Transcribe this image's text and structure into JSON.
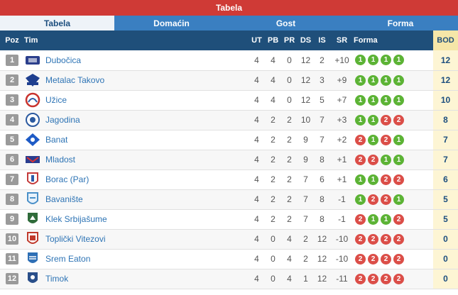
{
  "header": {
    "title": "Tabela"
  },
  "tabs": [
    {
      "label": "Tabela",
      "active": true
    },
    {
      "label": "Domaćin",
      "active": false
    },
    {
      "label": "Gost",
      "active": false
    },
    {
      "label": "Forma",
      "active": false
    }
  ],
  "columns": {
    "poz": "Poz",
    "tim": "Tim",
    "ut": "UT",
    "pb": "PB",
    "pr": "PR",
    "ds": "DS",
    "is": "IS",
    "sr": "SR",
    "forma": "Forma",
    "bod": "BOD"
  },
  "colors": {
    "title_bg": "#cf3a36",
    "tabs_bg": "#3a7fc1",
    "header_bg": "#1f4f7a",
    "win": "#5cb335",
    "loss": "#db4e48",
    "points_bg": "#fdf5d4"
  },
  "rows": [
    {
      "poz": "1",
      "team": "Dubočica",
      "logo_icon": "dubocica-logo",
      "logo_color": "#2b3f8c",
      "ut": "4",
      "pb": "4",
      "pr": "0",
      "ds": "12",
      "is": "2",
      "sr": "+10",
      "form": [
        "1",
        "1",
        "1",
        "1"
      ],
      "bod": "12"
    },
    {
      "poz": "2",
      "team": "Metalac Takovo",
      "logo_icon": "metalac-logo",
      "logo_color": "#1f3f8f",
      "ut": "4",
      "pb": "4",
      "pr": "0",
      "ds": "12",
      "is": "3",
      "sr": "+9",
      "form": [
        "1",
        "1",
        "1",
        "1"
      ],
      "bod": "12"
    },
    {
      "poz": "3",
      "team": "Užice",
      "logo_icon": "uzice-logo",
      "logo_color": "#c8322d",
      "ut": "4",
      "pb": "4",
      "pr": "0",
      "ds": "12",
      "is": "5",
      "sr": "+7",
      "form": [
        "1",
        "1",
        "1",
        "1"
      ],
      "bod": "10"
    },
    {
      "poz": "4",
      "team": "Jagodina",
      "logo_icon": "jagodina-logo",
      "logo_color": "#2c5aa0",
      "ut": "4",
      "pb": "2",
      "pr": "2",
      "ds": "10",
      "is": "7",
      "sr": "+3",
      "form": [
        "1",
        "1",
        "2",
        "2"
      ],
      "bod": "8"
    },
    {
      "poz": "5",
      "team": "Banat",
      "logo_icon": "banat-logo",
      "logo_color": "#1e5bc6",
      "ut": "4",
      "pb": "2",
      "pr": "2",
      "ds": "9",
      "is": "7",
      "sr": "+2",
      "form": [
        "2",
        "1",
        "2",
        "1"
      ],
      "bod": "7"
    },
    {
      "poz": "6",
      "team": "Mladost",
      "logo_icon": "mladost-logo",
      "logo_color": "#2a3d8f",
      "ut": "4",
      "pb": "2",
      "pr": "2",
      "ds": "9",
      "is": "8",
      "sr": "+1",
      "form": [
        "2",
        "2",
        "1",
        "1"
      ],
      "bod": "7"
    },
    {
      "poz": "7",
      "team": "Borac (Par)",
      "logo_icon": "borac-logo",
      "logo_color": "#c43b3b",
      "ut": "4",
      "pb": "2",
      "pr": "2",
      "ds": "7",
      "is": "6",
      "sr": "+1",
      "form": [
        "1",
        "1",
        "2",
        "2"
      ],
      "bod": "6"
    },
    {
      "poz": "8",
      "team": "Bavanište",
      "logo_icon": "bavaniste-logo",
      "logo_color": "#4a90c8",
      "ut": "4",
      "pb": "2",
      "pr": "2",
      "ds": "7",
      "is": "8",
      "sr": "-1",
      "form": [
        "1",
        "2",
        "2",
        "1"
      ],
      "bod": "5"
    },
    {
      "poz": "9",
      "team": "Klek Srbijašume",
      "logo_icon": "klek-logo",
      "logo_color": "#2f6b3a",
      "ut": "4",
      "pb": "2",
      "pr": "2",
      "ds": "7",
      "is": "8",
      "sr": "-1",
      "form": [
        "2",
        "1",
        "1",
        "2"
      ],
      "bod": "5"
    },
    {
      "poz": "10",
      "team": "Toplički Vitezovi",
      "logo_icon": "toplicki-logo",
      "logo_color": "#c0392b",
      "ut": "4",
      "pb": "0",
      "pr": "4",
      "ds": "2",
      "is": "12",
      "sr": "-10",
      "form": [
        "2",
        "2",
        "2",
        "2"
      ],
      "bod": "0"
    },
    {
      "poz": "11",
      "team": "Srem Eaton",
      "logo_icon": "srem-logo",
      "logo_color": "#2e6fb5",
      "ut": "4",
      "pb": "0",
      "pr": "4",
      "ds": "2",
      "is": "12",
      "sr": "-10",
      "form": [
        "2",
        "2",
        "2",
        "2"
      ],
      "bod": "0"
    },
    {
      "poz": "12",
      "team": "Timok",
      "logo_icon": "timok-logo",
      "logo_color": "#2a4f8a",
      "ut": "4",
      "pb": "0",
      "pr": "4",
      "ds": "1",
      "is": "12",
      "sr": "-11",
      "form": [
        "2",
        "2",
        "2",
        "2"
      ],
      "bod": "0"
    }
  ]
}
